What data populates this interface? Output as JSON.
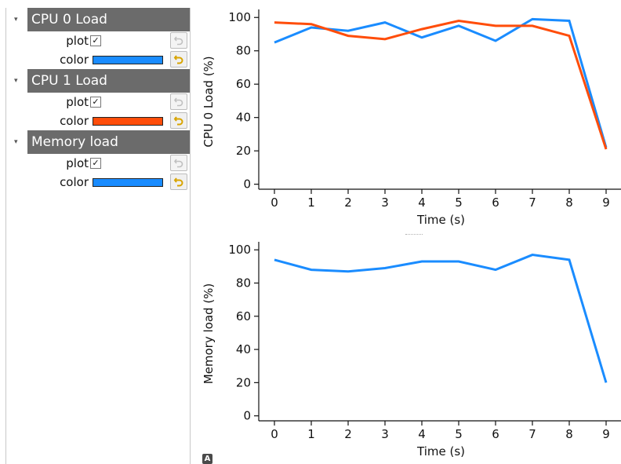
{
  "tree": {
    "groups": [
      {
        "title": "CPU 0 Load",
        "params": [
          {
            "label": "plot",
            "type": "bool",
            "checked": "✓"
          },
          {
            "label": "color",
            "type": "color",
            "color": "#1a8cff"
          }
        ]
      },
      {
        "title": "CPU 1 Load",
        "params": [
          {
            "label": "plot",
            "type": "bool",
            "checked": "✓"
          },
          {
            "label": "color",
            "type": "color",
            "color": "#ff4d0a"
          }
        ]
      },
      {
        "title": "Memory load",
        "params": [
          {
            "label": "plot",
            "type": "bool",
            "checked": "✓"
          },
          {
            "label": "color",
            "type": "color",
            "color": "#1a8cff"
          }
        ]
      }
    ],
    "expander_glyph": "▾",
    "reset_icon": "undo-arrow-icon"
  },
  "auto_button": "A",
  "chart_data": [
    {
      "type": "line",
      "xlabel": "Time (s)",
      "ylabel": "CPU 0 Load (%)",
      "xlim": [
        -0.5,
        9.5
      ],
      "ylim": [
        -3,
        102
      ],
      "xticks": [
        0,
        1,
        2,
        3,
        4,
        5,
        6,
        7,
        8,
        9
      ],
      "yticks": [
        0,
        20,
        40,
        60,
        80,
        100
      ],
      "grid": false,
      "x": [
        0,
        1,
        2,
        3,
        4,
        5,
        6,
        7,
        8,
        9
      ],
      "series": [
        {
          "color": "#1a8cff",
          "values": [
            85,
            94,
            92,
            97,
            88,
            95,
            86,
            99,
            98,
            22
          ]
        },
        {
          "color": "#ff4d0a",
          "values": [
            97,
            96,
            89,
            87,
            93,
            98,
            95,
            95,
            89,
            21
          ]
        }
      ]
    },
    {
      "type": "line",
      "xlabel": "Time (s)",
      "ylabel": "Memory load (%)",
      "xlim": [
        -0.5,
        9.5
      ],
      "ylim": [
        -3,
        102
      ],
      "xticks": [
        0,
        1,
        2,
        3,
        4,
        5,
        6,
        7,
        8,
        9
      ],
      "yticks": [
        0,
        20,
        40,
        60,
        80,
        100
      ],
      "grid": false,
      "x": [
        0,
        1,
        2,
        3,
        4,
        5,
        6,
        7,
        8,
        9
      ],
      "series": [
        {
          "color": "#1a8cff",
          "values": [
            94,
            88,
            87,
            89,
            93,
            93,
            88,
            97,
            94,
            20
          ]
        }
      ]
    }
  ]
}
